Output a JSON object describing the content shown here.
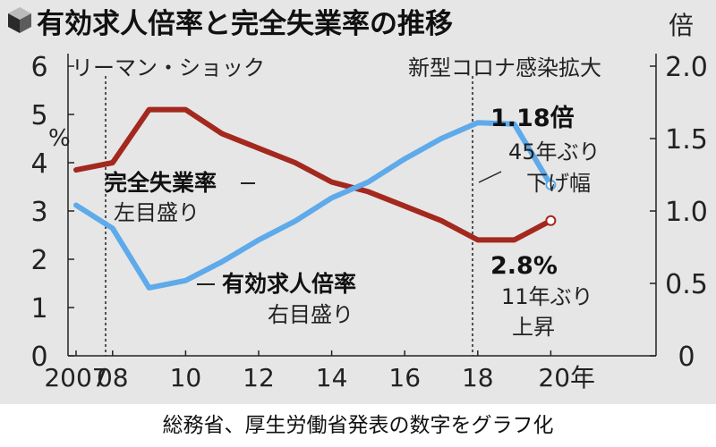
{
  "chart_data": {
    "type": "line",
    "title": "有効求人倍率と完全失業率の推移",
    "x": [
      2007,
      2008,
      2009,
      2010,
      2011,
      2012,
      2013,
      2014,
      2015,
      2016,
      2017,
      2018,
      2019,
      2020
    ],
    "x_ticks": [
      2007,
      2008,
      2010,
      2012,
      2014,
      2016,
      2018,
      2020
    ],
    "x_tick_labels": [
      "2007",
      "08",
      "10",
      "12",
      "14",
      "16",
      "18",
      "20年"
    ],
    "left_axis": {
      "unit_label": "%",
      "ylim": [
        0,
        6
      ],
      "ticks": [
        "0",
        "1",
        "2",
        "3",
        "4",
        "5",
        "6"
      ]
    },
    "right_axis": {
      "unit_label": "倍",
      "ylim": [
        0,
        2.0
      ],
      "ticks": [
        "0",
        "0.5",
        "1.0",
        "1.5",
        "2.0"
      ]
    },
    "series": [
      {
        "name": "完全失業率",
        "axis_note": "左目盛り",
        "axis": "left",
        "color": "#a3281e",
        "values": [
          3.85,
          4.0,
          5.1,
          5.1,
          4.6,
          4.3,
          4.0,
          3.6,
          3.4,
          3.1,
          2.8,
          2.4,
          2.4,
          2.8
        ]
      },
      {
        "name": "有効求人倍率",
        "axis_note": "右目盛り",
        "axis": "right",
        "color": "#5eaaea",
        "values": [
          1.04,
          0.88,
          0.47,
          0.52,
          0.65,
          0.8,
          0.93,
          1.09,
          1.2,
          1.36,
          1.5,
          1.61,
          1.6,
          1.18
        ]
      }
    ],
    "events": [
      {
        "label": "リーマン・ショック",
        "x": 2008
      },
      {
        "label": "新型コロナ感染拡大",
        "x": 2020
      }
    ],
    "annotations": [
      {
        "value": "1.18倍",
        "lines": [
          "45年ぶり",
          "下げ幅"
        ]
      },
      {
        "value": "2.8%",
        "lines": [
          "11年ぶり",
          "上昇"
        ]
      }
    ],
    "grid": false,
    "legend": "inline labels"
  },
  "caption": "総務省、厚生労働省発表の数字をグラフ化"
}
